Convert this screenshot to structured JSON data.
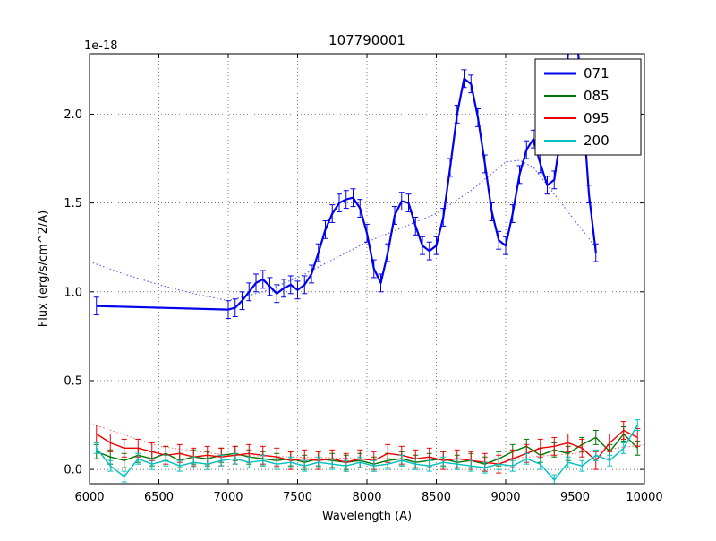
{
  "chart_data": {
    "type": "line",
    "title": "107790001",
    "xlabel": "Wavelength (A)",
    "ylabel": "Flux (erg/s/cm^2/A)",
    "y_offset_text": "1e-18",
    "xlim": [
      6000,
      10000
    ],
    "ylim": [
      -0.08,
      2.34
    ],
    "xticks": [
      6000,
      6500,
      7000,
      7500,
      8000,
      8500,
      9000,
      9500,
      10000
    ],
    "yticks": [
      0.0,
      0.5,
      1.0,
      1.5,
      2.0
    ],
    "grid": true,
    "legend_position": "upper right",
    "series": [
      {
        "name": "071",
        "color": "#0000ee",
        "width": 2.2,
        "err": 0.05,
        "in_legend": true,
        "z": 3,
        "x": [
          6050,
          7000,
          7050,
          7100,
          7150,
          7200,
          7250,
          7300,
          7350,
          7400,
          7450,
          7500,
          7550,
          7600,
          7650,
          7700,
          7750,
          7800,
          7850,
          7900,
          7950,
          8000,
          8050,
          8100,
          8150,
          8200,
          8250,
          8300,
          8350,
          8400,
          8450,
          8500,
          8550,
          8600,
          8650,
          8700,
          8750,
          8800,
          8850,
          8900,
          8950,
          9000,
          9050,
          9100,
          9150,
          9200,
          9250,
          9300,
          9350,
          9400,
          9450,
          9500,
          9550,
          9600,
          9650
        ],
        "y": [
          0.92,
          0.9,
          0.91,
          0.95,
          1.0,
          1.05,
          1.07,
          1.03,
          0.99,
          1.02,
          1.04,
          1.01,
          1.04,
          1.1,
          1.22,
          1.35,
          1.44,
          1.5,
          1.52,
          1.53,
          1.47,
          1.33,
          1.13,
          1.05,
          1.22,
          1.43,
          1.51,
          1.5,
          1.37,
          1.26,
          1.23,
          1.26,
          1.42,
          1.7,
          2.0,
          2.2,
          2.17,
          1.98,
          1.72,
          1.45,
          1.29,
          1.26,
          1.44,
          1.66,
          1.8,
          1.86,
          1.72,
          1.6,
          1.63,
          1.9,
          2.35,
          2.55,
          2.1,
          1.55,
          1.22
        ]
      },
      {
        "name": "085",
        "color": "#007700",
        "width": 1.4,
        "err": 0.04,
        "in_legend": true,
        "z": 2,
        "x": [
          6050,
          6150,
          6250,
          6350,
          6450,
          6550,
          6650,
          6750,
          6850,
          6950,
          7050,
          7150,
          7250,
          7350,
          7450,
          7550,
          7650,
          7750,
          7850,
          7950,
          8050,
          8150,
          8250,
          8350,
          8450,
          8550,
          8650,
          8750,
          8850,
          8950,
          9050,
          9150,
          9250,
          9350,
          9450,
          9550,
          9650,
          9750,
          9850,
          9950
        ],
        "y": [
          0.1,
          0.07,
          0.05,
          0.08,
          0.06,
          0.09,
          0.05,
          0.07,
          0.06,
          0.08,
          0.09,
          0.07,
          0.06,
          0.05,
          0.06,
          0.04,
          0.06,
          0.05,
          0.04,
          0.05,
          0.03,
          0.05,
          0.06,
          0.04,
          0.05,
          0.06,
          0.04,
          0.05,
          0.03,
          0.06,
          0.1,
          0.13,
          0.08,
          0.11,
          0.09,
          0.14,
          0.18,
          0.1,
          0.2,
          0.12
        ]
      },
      {
        "name": "095",
        "color": "#ee0000",
        "width": 1.4,
        "err": 0.05,
        "in_legend": true,
        "z": 2,
        "x": [
          6050,
          6150,
          6250,
          6350,
          6450,
          6550,
          6650,
          6750,
          6850,
          6950,
          7050,
          7150,
          7250,
          7350,
          7450,
          7550,
          7650,
          7750,
          7850,
          7950,
          8050,
          8150,
          8250,
          8350,
          8450,
          8550,
          8650,
          8750,
          8850,
          8950,
          9050,
          9150,
          9250,
          9350,
          9450,
          9550,
          9650,
          9750,
          9850,
          9950
        ],
        "y": [
          0.2,
          0.15,
          0.12,
          0.12,
          0.1,
          0.08,
          0.09,
          0.07,
          0.08,
          0.07,
          0.08,
          0.09,
          0.08,
          0.07,
          0.05,
          0.06,
          0.05,
          0.06,
          0.04,
          0.06,
          0.05,
          0.09,
          0.08,
          0.06,
          0.07,
          0.05,
          0.06,
          0.05,
          0.04,
          0.03,
          0.06,
          0.09,
          0.12,
          0.13,
          0.15,
          0.12,
          0.05,
          0.15,
          0.22,
          0.18
        ]
      },
      {
        "name": "200",
        "color": "#00bfbf",
        "width": 1.4,
        "err": 0.03,
        "in_legend": true,
        "z": 2,
        "x": [
          6050,
          6150,
          6250,
          6350,
          6450,
          6550,
          6650,
          6750,
          6850,
          6950,
          7050,
          7150,
          7250,
          7350,
          7450,
          7550,
          7650,
          7750,
          7850,
          7950,
          8050,
          8150,
          8250,
          8350,
          8450,
          8550,
          8650,
          8750,
          8850,
          8950,
          9050,
          9150,
          9250,
          9350,
          9450,
          9550,
          9650,
          9750,
          9850,
          9950
        ],
        "y": [
          0.12,
          0.02,
          -0.04,
          0.06,
          0.03,
          0.05,
          0.02,
          0.04,
          0.03,
          0.05,
          0.06,
          0.04,
          0.05,
          0.03,
          0.04,
          0.02,
          0.04,
          0.03,
          0.02,
          0.04,
          0.02,
          0.03,
          0.05,
          0.03,
          0.02,
          0.04,
          0.03,
          0.02,
          0.01,
          0.03,
          0.02,
          0.06,
          0.03,
          -0.06,
          0.04,
          0.02,
          0.08,
          0.05,
          0.12,
          0.25
        ]
      },
      {
        "name": "071-model",
        "color": "#5555ff",
        "width": 1.1,
        "style": "dotted",
        "in_legend": false,
        "z": 1,
        "x": [
          6000,
          6250,
          6500,
          6750,
          7000,
          7250,
          7500,
          7750,
          8000,
          8250,
          8500,
          8750,
          9000,
          9100,
          9200,
          9300,
          9400,
          9500,
          9650
        ],
        "y": [
          1.17,
          1.1,
          1.04,
          0.99,
          0.95,
          1.0,
          1.08,
          1.18,
          1.28,
          1.36,
          1.44,
          1.57,
          1.73,
          1.74,
          1.7,
          1.6,
          1.5,
          1.4,
          1.25
        ]
      },
      {
        "name": "095-model",
        "color": "#ff6666",
        "width": 1.0,
        "style": "dotted",
        "in_legend": false,
        "z": 1,
        "x": [
          6000,
          6500,
          7000,
          8000,
          9000,
          9500,
          10000
        ],
        "y": [
          0.26,
          0.13,
          0.08,
          0.06,
          0.06,
          0.09,
          0.14
        ]
      }
    ]
  }
}
